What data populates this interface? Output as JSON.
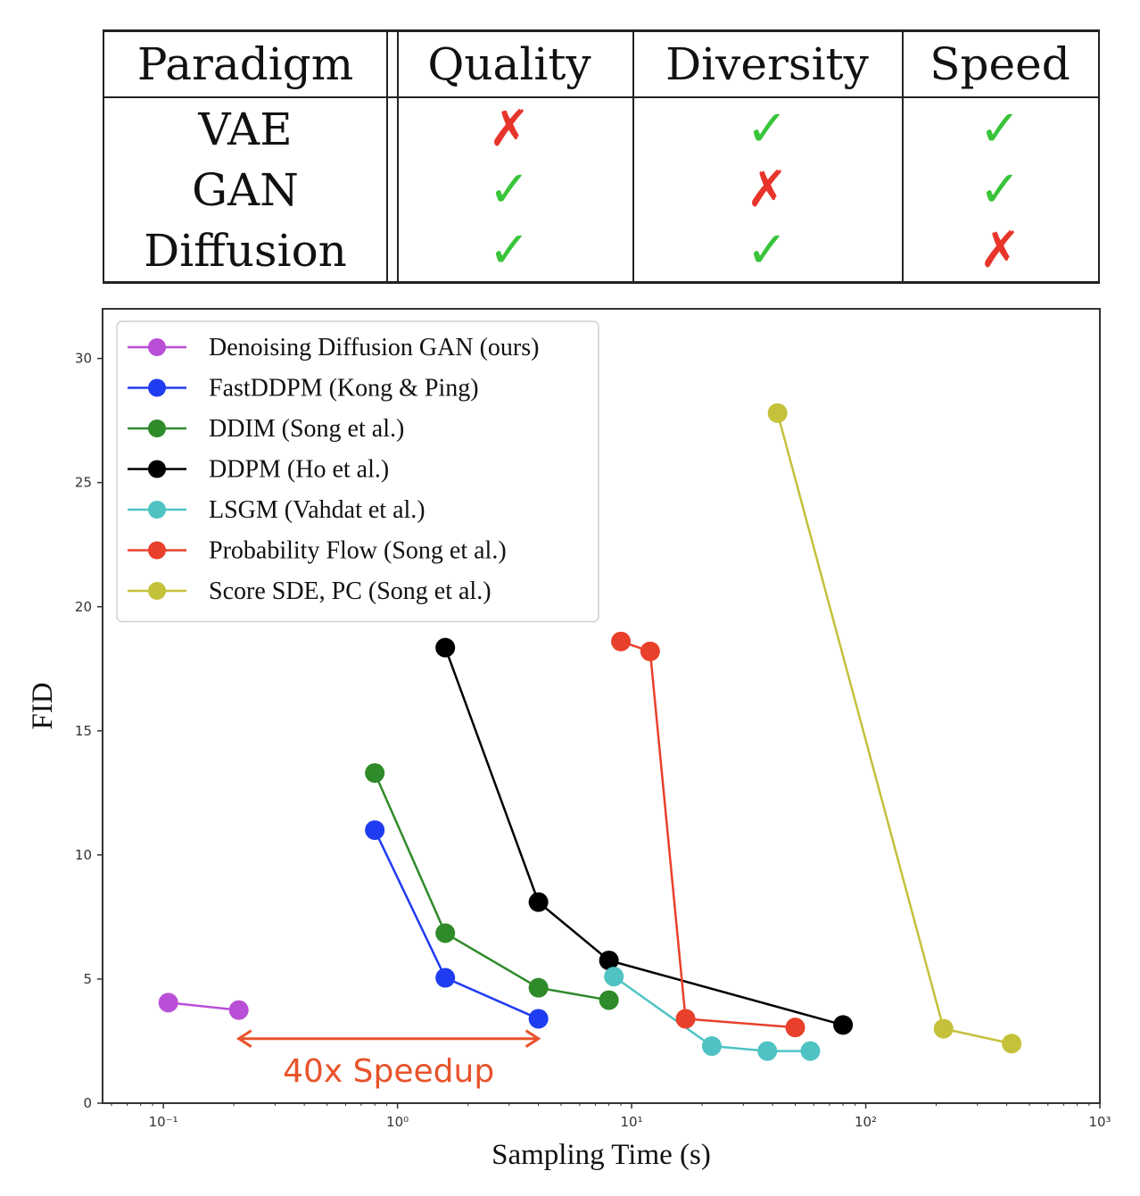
{
  "table": {
    "headers": [
      "Paradigm",
      "Quality",
      "Diversity",
      "Speed"
    ],
    "rows": [
      {
        "paradigm": "VAE",
        "quality": "✗",
        "diversity": "✓",
        "speed": "✓"
      },
      {
        "paradigm": "GAN",
        "quality": "✓",
        "diversity": "✗",
        "speed": "✓"
      },
      {
        "paradigm": "Diffusion",
        "quality": "✓",
        "diversity": "✓",
        "speed": "✗"
      }
    ],
    "colors": {
      "yes": "#39c43a",
      "no": "#e8352b"
    }
  },
  "chart_data": {
    "type": "line",
    "xlabel": "Sampling Time (s)",
    "ylabel": "FID",
    "xscale": "log",
    "xlim": [
      0.055,
      1000
    ],
    "ylim": [
      0,
      32
    ],
    "x_ticks": [
      {
        "value": 0.1,
        "label": "10⁻¹"
      },
      {
        "value": 1,
        "label": "10⁰"
      },
      {
        "value": 10,
        "label": "10¹"
      },
      {
        "value": 100,
        "label": "10²"
      },
      {
        "value": 1000,
        "label": "10³"
      }
    ],
    "y_ticks": [
      0,
      5,
      10,
      15,
      20,
      25,
      30
    ],
    "grid": false,
    "legend_position": "top-left",
    "series": [
      {
        "name": "Denoising Diffusion GAN (ours)",
        "color": "#b94fd6",
        "points": [
          [
            0.105,
            4.05
          ],
          [
            0.21,
            3.75
          ]
        ]
      },
      {
        "name": "FastDDPM (Kong & Ping)",
        "color": "#1f3cf0",
        "points": [
          [
            0.8,
            11.0
          ],
          [
            1.6,
            5.05
          ],
          [
            4.0,
            3.4
          ]
        ]
      },
      {
        "name": "DDIM (Song et al.)",
        "color": "#2f8a2a",
        "points": [
          [
            0.8,
            13.3
          ],
          [
            1.6,
            6.85
          ],
          [
            4.0,
            4.65
          ],
          [
            8.0,
            4.15
          ]
        ]
      },
      {
        "name": "DDPM (Ho et al.)",
        "color": "#000000",
        "points": [
          [
            1.6,
            18.35
          ],
          [
            4.0,
            8.1
          ],
          [
            8.0,
            5.75
          ],
          [
            80.0,
            3.15
          ]
        ]
      },
      {
        "name": "LSGM (Vahdat et al.)",
        "color": "#4fc3c4",
        "points": [
          [
            8.4,
            5.1
          ],
          [
            22.0,
            2.3
          ],
          [
            38.0,
            2.1
          ],
          [
            58.0,
            2.1
          ]
        ]
      },
      {
        "name": "Probability Flow (Song et al.)",
        "color": "#e8402b",
        "points": [
          [
            9.0,
            18.6
          ],
          [
            12.0,
            18.2
          ],
          [
            17.0,
            3.4
          ],
          [
            50.0,
            3.05
          ]
        ]
      },
      {
        "name": "Score SDE, PC (Song et al.)",
        "color": "#c4c13a",
        "points": [
          [
            42.0,
            27.8
          ],
          [
            215.0,
            3.0
          ],
          [
            420.0,
            2.4
          ]
        ]
      }
    ],
    "annotations": [
      {
        "text": "40x Speedup",
        "color": "#e8532b",
        "arrow_from": [
          0.21,
          2.6
        ],
        "arrow_to": [
          4.0,
          2.6
        ],
        "y": 1.3
      }
    ]
  }
}
